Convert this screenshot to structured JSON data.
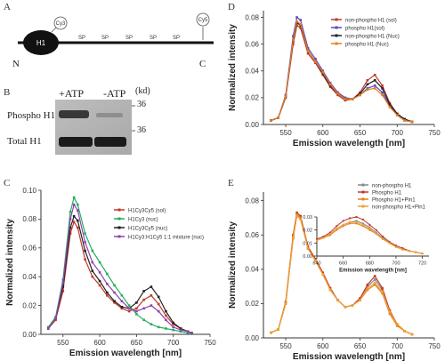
{
  "panel_labels": [
    "A",
    "B",
    "C",
    "D",
    "E"
  ],
  "panel_a": {
    "domain_label": "H1",
    "cy_left": "Cy3",
    "cy_right": "Cy5",
    "sp_labels": [
      "SP",
      "SP",
      "SP",
      "SP",
      "SP"
    ],
    "n_label": "N",
    "c_label": "C"
  },
  "panel_b": {
    "col_labels": [
      "+ATP",
      "-ATP"
    ],
    "kd_label": "(kd)",
    "row_labels": [
      "Phospho H1",
      "Total H1"
    ],
    "markers": [
      "36",
      "36"
    ]
  },
  "chart_data": [
    {
      "id": "C",
      "type": "line",
      "xlabel": "Emission wavelength [nm]",
      "ylabel": "Normalized intensity",
      "xlim": [
        520,
        750
      ],
      "ylim": [
        0,
        0.1
      ],
      "xticks": [
        550,
        600,
        650,
        700,
        750
      ],
      "yticks": [
        0.0,
        0.02,
        0.04,
        0.06,
        0.08,
        0.1
      ],
      "ytick_labels": [
        "0.00",
        "0.02",
        "0.04",
        "0.06",
        "0.08",
        "0.10"
      ],
      "legend_position": "top-right",
      "x": [
        530,
        540,
        550,
        560,
        565,
        570,
        580,
        590,
        600,
        610,
        620,
        630,
        640,
        650,
        660,
        670,
        680,
        690,
        700,
        710,
        720,
        725
      ],
      "series": [
        {
          "name": "H1Cy3Cy5 (sol)",
          "color": "#c0392b",
          "values": [
            0.004,
            0.01,
            0.03,
            0.07,
            0.078,
            0.074,
            0.052,
            0.04,
            0.034,
            0.027,
            0.022,
            0.018,
            0.016,
            0.018,
            0.024,
            0.027,
            0.021,
            0.013,
            0.007,
            0.004,
            0.002,
            0.001
          ]
        },
        {
          "name": "H1Cy3 (nuc)",
          "color": "#27ae60",
          "values": [
            0.005,
            0.012,
            0.038,
            0.085,
            0.095,
            0.09,
            0.07,
            0.058,
            0.05,
            0.042,
            0.034,
            0.027,
            0.02,
            0.014,
            0.01,
            0.007,
            0.005,
            0.004,
            0.003,
            0.002,
            0.001,
            0.001
          ]
        },
        {
          "name": "H1Cy3Cy5 (nuc)",
          "color": "#222222",
          "values": [
            0.004,
            0.011,
            0.033,
            0.074,
            0.082,
            0.079,
            0.058,
            0.044,
            0.037,
            0.029,
            0.023,
            0.019,
            0.018,
            0.022,
            0.03,
            0.033,
            0.026,
            0.016,
            0.008,
            0.004,
            0.002,
            0.001
          ]
        },
        {
          "name": "H1Cy3:H1Cy5 1:1 mixture (nuc)",
          "color": "#8e44ad",
          "values": [
            0.004,
            0.011,
            0.036,
            0.08,
            0.09,
            0.086,
            0.064,
            0.05,
            0.043,
            0.035,
            0.029,
            0.023,
            0.018,
            0.016,
            0.018,
            0.02,
            0.016,
            0.01,
            0.005,
            0.003,
            0.002,
            0.001
          ]
        }
      ]
    },
    {
      "id": "D",
      "type": "line",
      "xlabel": "Emission wavelength [nm]",
      "ylabel": "Normalized intensity",
      "xlim": [
        520,
        750
      ],
      "ylim": [
        0,
        0.085
      ],
      "xticks": [
        550,
        600,
        650,
        700,
        750
      ],
      "yticks": [
        0.0,
        0.02,
        0.04,
        0.06,
        0.08
      ],
      "ytick_labels": [
        "0.00",
        "0.02",
        "0.04",
        "0.06",
        "0.08"
      ],
      "legend_position": "top-right",
      "x": [
        530,
        540,
        550,
        560,
        565,
        570,
        580,
        590,
        600,
        610,
        620,
        630,
        640,
        650,
        660,
        670,
        680,
        690,
        700,
        710,
        720
      ],
      "series": [
        {
          "name": "non-phospho H1 (sol)",
          "color": "#c0392b",
          "values": [
            0.003,
            0.005,
            0.02,
            0.06,
            0.074,
            0.072,
            0.053,
            0.046,
            0.037,
            0.028,
            0.022,
            0.018,
            0.019,
            0.024,
            0.033,
            0.037,
            0.029,
            0.016,
            0.008,
            0.004,
            0.002
          ]
        },
        {
          "name": "phospho H1(sol)",
          "color": "#5b4ab8",
          "values": [
            0.003,
            0.005,
            0.022,
            0.066,
            0.08,
            0.078,
            0.057,
            0.049,
            0.04,
            0.031,
            0.024,
            0.02,
            0.019,
            0.022,
            0.027,
            0.029,
            0.024,
            0.014,
            0.007,
            0.003,
            0.002
          ]
        },
        {
          "name": "non-phospho H1 (Nuc)",
          "color": "#222222",
          "values": [
            0.003,
            0.005,
            0.021,
            0.062,
            0.076,
            0.074,
            0.055,
            0.047,
            0.038,
            0.029,
            0.023,
            0.019,
            0.019,
            0.023,
            0.03,
            0.033,
            0.027,
            0.015,
            0.008,
            0.004,
            0.002
          ]
        },
        {
          "name": "phospho H1 (Nuc)",
          "color": "#e67e22",
          "values": [
            0.003,
            0.005,
            0.021,
            0.063,
            0.077,
            0.075,
            0.055,
            0.047,
            0.039,
            0.03,
            0.023,
            0.019,
            0.019,
            0.022,
            0.026,
            0.027,
            0.022,
            0.013,
            0.007,
            0.003,
            0.002
          ]
        }
      ]
    },
    {
      "id": "E",
      "type": "line",
      "xlabel": "Emission wavelength [nm]",
      "ylabel": "Normalized intensity",
      "xlim": [
        520,
        750
      ],
      "ylim": [
        0,
        0.085
      ],
      "xticks": [
        550,
        600,
        650,
        700,
        750
      ],
      "yticks": [
        0.0,
        0.02,
        0.04,
        0.06,
        0.08
      ],
      "ytick_labels": [
        "0.00",
        "0.02",
        "0.04",
        "0.06",
        "0.08"
      ],
      "legend_position": "top-right",
      "x": [
        530,
        540,
        550,
        560,
        565,
        570,
        580,
        590,
        600,
        610,
        620,
        630,
        640,
        650,
        660,
        670,
        680,
        690,
        700,
        710,
        720
      ],
      "series": [
        {
          "name": "non-phospho H1",
          "color": "#7f8c8d",
          "values": [
            0.003,
            0.005,
            0.02,
            0.058,
            0.072,
            0.07,
            0.052,
            0.045,
            0.037,
            0.028,
            0.022,
            0.018,
            0.019,
            0.023,
            0.03,
            0.034,
            0.028,
            0.015,
            0.008,
            0.004,
            0.002
          ]
        },
        {
          "name": "Phospho H1",
          "color": "#c0392b",
          "values": [
            0.003,
            0.005,
            0.021,
            0.06,
            0.073,
            0.071,
            0.053,
            0.046,
            0.038,
            0.029,
            0.022,
            0.018,
            0.019,
            0.023,
            0.031,
            0.036,
            0.029,
            0.016,
            0.008,
            0.004,
            0.002
          ]
        },
        {
          "name": "Phospho H1+Pin1",
          "color": "#e67e22",
          "values": [
            0.003,
            0.005,
            0.02,
            0.059,
            0.072,
            0.07,
            0.052,
            0.045,
            0.037,
            0.028,
            0.022,
            0.018,
            0.019,
            0.022,
            0.028,
            0.031,
            0.026,
            0.014,
            0.007,
            0.004,
            0.002
          ]
        },
        {
          "name": "non-phospho H1+Pin1",
          "color": "#f0a030",
          "values": [
            0.003,
            0.005,
            0.02,
            0.058,
            0.071,
            0.069,
            0.052,
            0.045,
            0.037,
            0.028,
            0.022,
            0.018,
            0.019,
            0.022,
            0.029,
            0.032,
            0.027,
            0.015,
            0.008,
            0.004,
            0.002
          ]
        }
      ]
    },
    {
      "id": "E-inset",
      "type": "line",
      "xlabel": "Emission wavelength [nm]",
      "ylabel": "",
      "xlim": [
        640,
        725
      ],
      "ylim": [
        0,
        0.03
      ],
      "xticks": [
        640,
        660,
        680,
        700,
        720
      ],
      "yticks": [
        0.0,
        0.01,
        0.02,
        0.03
      ],
      "ytick_labels": [
        "0.00",
        "0.01",
        "0.02",
        "0.03"
      ],
      "x": [
        640,
        645,
        650,
        655,
        660,
        665,
        670,
        675,
        680,
        685,
        690,
        695,
        700,
        705,
        710,
        715,
        720
      ],
      "series": [
        {
          "name": "non-phospho H1",
          "color": "#7f8c8d",
          "values": [
            0.012,
            0.014,
            0.017,
            0.021,
            0.024,
            0.026,
            0.027,
            0.025,
            0.022,
            0.018,
            0.014,
            0.01,
            0.008,
            0.006,
            0.004,
            0.003,
            0.002
          ]
        },
        {
          "name": "Phospho H1",
          "color": "#c0392b",
          "values": [
            0.013,
            0.015,
            0.018,
            0.023,
            0.027,
            0.029,
            0.03,
            0.028,
            0.024,
            0.02,
            0.015,
            0.011,
            0.008,
            0.006,
            0.004,
            0.003,
            0.002
          ]
        },
        {
          "name": "Phospho H1+Pin1",
          "color": "#e67e22",
          "values": [
            0.012,
            0.014,
            0.016,
            0.02,
            0.023,
            0.025,
            0.025,
            0.023,
            0.02,
            0.017,
            0.013,
            0.01,
            0.007,
            0.005,
            0.004,
            0.003,
            0.002
          ]
        },
        {
          "name": "non-phospho H1+Pin1",
          "color": "#f0a030",
          "values": [
            0.012,
            0.014,
            0.017,
            0.021,
            0.024,
            0.026,
            0.026,
            0.024,
            0.021,
            0.017,
            0.013,
            0.01,
            0.007,
            0.005,
            0.004,
            0.003,
            0.002
          ]
        }
      ]
    }
  ]
}
